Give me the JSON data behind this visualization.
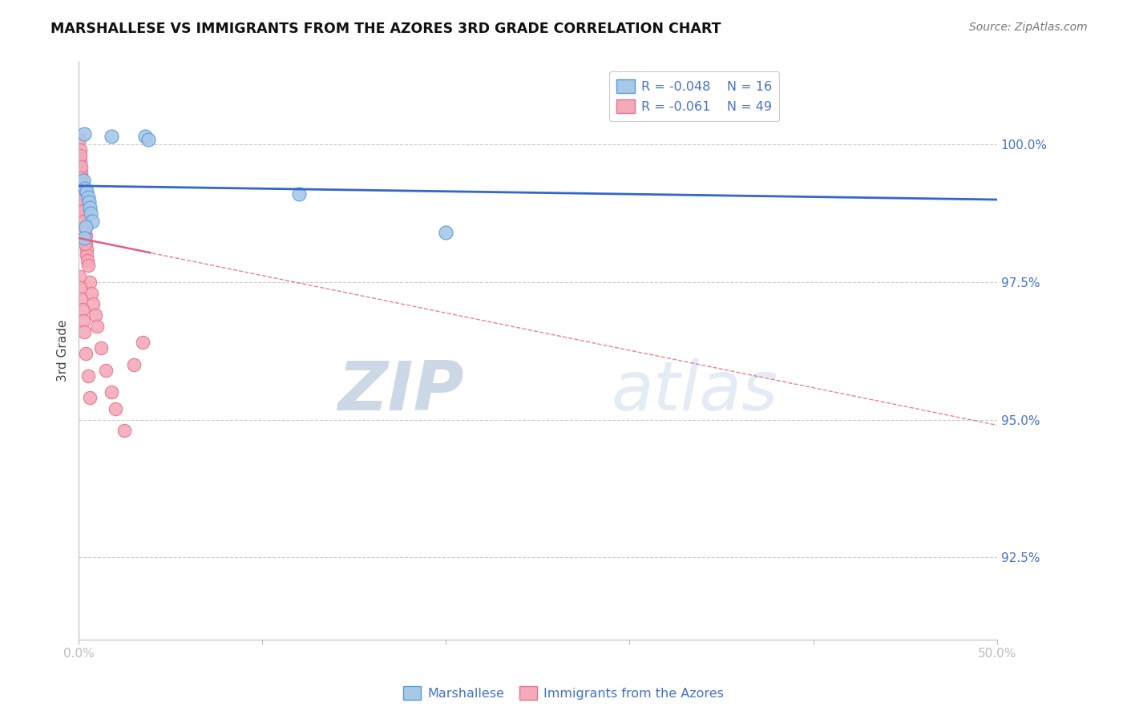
{
  "title": "MARSHALLESE VS IMMIGRANTS FROM THE AZORES 3RD GRADE CORRELATION CHART",
  "source": "Source: ZipAtlas.com",
  "ylabel": "3rd Grade",
  "ylabel_right_ticks": [
    100.0,
    97.5,
    95.0,
    92.5
  ],
  "xlim": [
    0.0,
    50.0
  ],
  "ylim": [
    91.0,
    101.5
  ],
  "blue_R": -0.048,
  "blue_N": 16,
  "pink_R": -0.061,
  "pink_N": 49,
  "blue_color": "#A8C8E8",
  "pink_color": "#F4AABB",
  "blue_edge_color": "#5599DD",
  "pink_edge_color": "#E8708A",
  "blue_line_color": "#3366CC",
  "pink_line_color": "#E06080",
  "grid_color": "#CCCCCC",
  "text_color": "#4472C4",
  "background_color": "#FFFFFF",
  "watermark_zip": "ZIP",
  "watermark_atlas": "atlas",
  "blue_scatter_x": [
    0.3,
    1.8,
    3.6,
    3.8,
    0.25,
    0.35,
    0.45,
    0.5,
    0.55,
    0.6,
    0.65,
    0.75,
    20.0,
    0.4,
    12.0,
    0.3
  ],
  "blue_scatter_y": [
    100.2,
    100.15,
    100.15,
    100.1,
    99.35,
    99.2,
    99.15,
    99.05,
    98.95,
    98.85,
    98.75,
    98.6,
    98.4,
    98.5,
    99.1,
    98.3
  ],
  "pink_scatter_x": [
    0.05,
    0.08,
    0.1,
    0.12,
    0.15,
    0.18,
    0.2,
    0.22,
    0.25,
    0.28,
    0.3,
    0.32,
    0.35,
    0.38,
    0.4,
    0.42,
    0.45,
    0.48,
    0.5,
    0.08,
    0.12,
    0.15,
    0.18,
    0.22,
    0.25,
    0.28,
    0.32,
    0.35,
    0.6,
    0.7,
    0.8,
    0.9,
    1.0,
    1.2,
    1.5,
    1.8,
    2.0,
    2.5,
    3.0,
    3.5,
    0.05,
    0.1,
    0.15,
    0.2,
    0.25,
    0.3,
    0.4,
    0.5,
    0.6
  ],
  "pink_scatter_y": [
    100.1,
    99.9,
    99.7,
    99.5,
    99.3,
    99.2,
    99.1,
    99.0,
    98.9,
    98.8,
    98.7,
    98.6,
    98.5,
    98.35,
    98.2,
    98.1,
    98.0,
    97.9,
    97.8,
    99.8,
    99.6,
    99.4,
    99.2,
    99.0,
    98.8,
    98.6,
    98.4,
    98.2,
    97.5,
    97.3,
    97.1,
    96.9,
    96.7,
    96.3,
    95.9,
    95.5,
    95.2,
    94.8,
    96.0,
    96.4,
    97.6,
    97.4,
    97.2,
    97.0,
    96.8,
    96.6,
    96.2,
    95.8,
    95.4
  ],
  "blue_line_x0": 0.0,
  "blue_line_y0": 99.25,
  "blue_line_x1": 50.0,
  "blue_line_y1": 99.0,
  "pink_line_x0": 0.0,
  "pink_line_y0": 98.3,
  "pink_line_x1": 50.0,
  "pink_line_y1": 94.9,
  "pink_solid_end": 4.0
}
